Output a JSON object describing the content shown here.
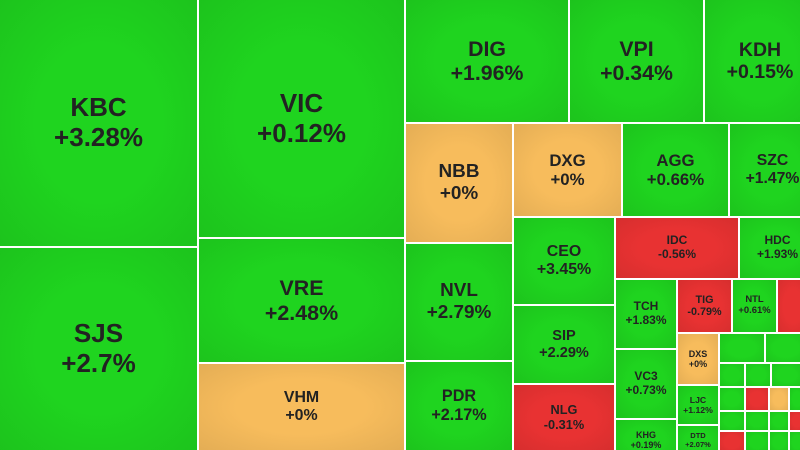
{
  "tiles": [
    {
      "ticker": "KBC",
      "change": "+3.28%",
      "color": "#1fd41f"
    },
    {
      "ticker": "SJS",
      "change": "+2.7%",
      "color": "#1fd41f"
    },
    {
      "ticker": "VIC",
      "change": "+0.12%",
      "color": "#1fd41f"
    },
    {
      "ticker": "VRE",
      "change": "+2.48%",
      "color": "#1fd41f"
    },
    {
      "ticker": "VHM",
      "change": "+0%",
      "color": "#f7bc5c"
    },
    {
      "ticker": "DIG",
      "change": "+1.96%",
      "color": "#1fd41f"
    },
    {
      "ticker": "VPI",
      "change": "+0.34%",
      "color": "#1fd41f"
    },
    {
      "ticker": "KDH",
      "change": "+0.15%",
      "color": "#1fd41f"
    },
    {
      "ticker": "NBB",
      "change": "+0%",
      "color": "#f7bc5c"
    },
    {
      "ticker": "DXG",
      "change": "+0%",
      "color": "#f7bc5c"
    },
    {
      "ticker": "AGG",
      "change": "+0.66%",
      "color": "#1fd41f"
    },
    {
      "ticker": "SZC",
      "change": "+1.47%",
      "color": "#1fd41f"
    },
    {
      "ticker": "NVL",
      "change": "+2.79%",
      "color": "#1fd41f"
    },
    {
      "ticker": "PDR",
      "change": "+2.17%",
      "color": "#1fd41f"
    },
    {
      "ticker": "CEO",
      "change": "+3.45%",
      "color": "#1fd41f"
    },
    {
      "ticker": "SIP",
      "change": "+2.29%",
      "color": "#1fd41f"
    },
    {
      "ticker": "NLG",
      "change": "-0.31%",
      "color": "#e83232"
    },
    {
      "ticker": "IDC",
      "change": "-0.56%",
      "color": "#e83232"
    },
    {
      "ticker": "HDC",
      "change": "+1.93%",
      "color": "#1fd41f"
    },
    {
      "ticker": "TCH",
      "change": "+1.83%",
      "color": "#1fd41f"
    },
    {
      "ticker": "TIG",
      "change": "-0.79%",
      "color": "#e83232"
    },
    {
      "ticker": "NTL",
      "change": "+0.61%",
      "color": "#1fd41f"
    },
    {
      "ticker": "VC3",
      "change": "+0.73%",
      "color": "#1fd41f"
    },
    {
      "ticker": "KHG",
      "change": "+0.19%",
      "color": "#1fd41f"
    },
    {
      "ticker": "DXS",
      "change": "+0%",
      "color": "#f7bc5c"
    },
    {
      "ticker": "LJC",
      "change": "+1.12%",
      "color": "#1fd41f"
    },
    {
      "ticker": "DTD",
      "change": "+2.07%",
      "color": "#1fd41f"
    }
  ]
}
